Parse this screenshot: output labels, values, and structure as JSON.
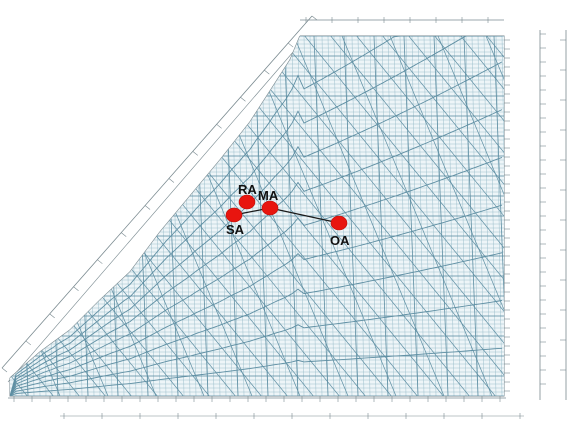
{
  "diagram": {
    "colors": {
      "grid_line": "#5f8fa3",
      "grid_line_light": "#9cbfcc",
      "frame_line": "#7a8a90",
      "point_fill": "#e8150f",
      "process_line": "#1a1a1a",
      "label_color": "#111111",
      "faint_text": "#a9b4b8"
    },
    "points": [
      {
        "id": "ra",
        "label": "RA"
      },
      {
        "id": "ma",
        "label": "MA"
      },
      {
        "id": "sa",
        "label": "SA"
      },
      {
        "id": "oa",
        "label": "OA"
      }
    ],
    "process_lines": [
      {
        "from": "sa",
        "to": "ma"
      },
      {
        "from": "ma",
        "to": "oa"
      }
    ]
  }
}
